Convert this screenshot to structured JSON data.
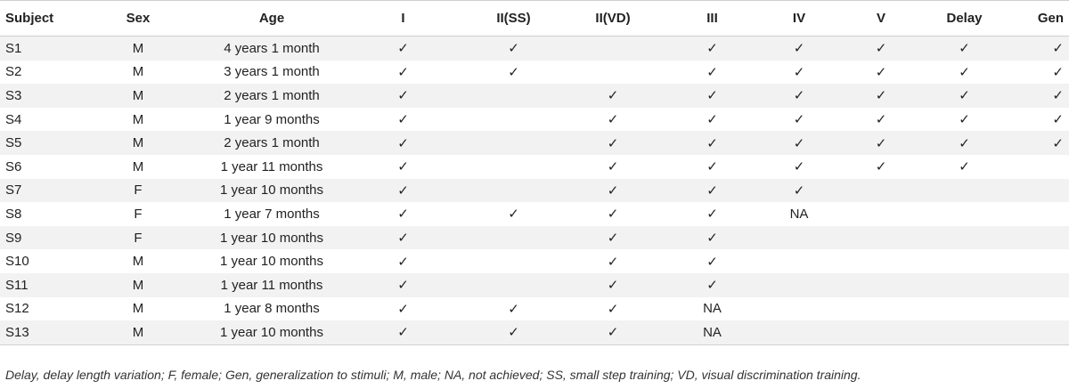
{
  "columns": [
    "Subject",
    "Sex",
    "Age",
    "I",
    "II(SS)",
    "II(VD)",
    "III",
    "IV",
    "V",
    "Delay",
    "Gen"
  ],
  "rows": [
    [
      "S1",
      "M",
      "4 years 1 month",
      "✓",
      "✓",
      "",
      "✓",
      "✓",
      "✓",
      "✓",
      "✓"
    ],
    [
      "S2",
      "M",
      "3 years 1 month",
      "✓",
      "✓",
      "",
      "✓",
      "✓",
      "✓",
      "✓",
      "✓"
    ],
    [
      "S3",
      "M",
      "2 years 1 month",
      "✓",
      "",
      "✓",
      "✓",
      "✓",
      "✓",
      "✓",
      "✓"
    ],
    [
      "S4",
      "M",
      "1 year 9 months",
      "✓",
      "",
      "✓",
      "✓",
      "✓",
      "✓",
      "✓",
      "✓"
    ],
    [
      "S5",
      "M",
      "2 years 1 month",
      "✓",
      "",
      "✓",
      "✓",
      "✓",
      "✓",
      "✓",
      "✓"
    ],
    [
      "S6",
      "M",
      "1 year 11 months",
      "✓",
      "",
      "✓",
      "✓",
      "✓",
      "✓",
      "✓",
      ""
    ],
    [
      "S7",
      "F",
      "1 year 10 months",
      "✓",
      "",
      "✓",
      "✓",
      "✓",
      "",
      "",
      ""
    ],
    [
      "S8",
      "F",
      "1 year 7 months",
      "✓",
      "✓",
      "✓",
      "✓",
      "NA",
      "",
      "",
      ""
    ],
    [
      "S9",
      "F",
      "1 year 10 months",
      "✓",
      "",
      "✓",
      "✓",
      "",
      "",
      "",
      ""
    ],
    [
      "S10",
      "M",
      "1 year 10 months",
      "✓",
      "",
      "✓",
      "✓",
      "",
      "",
      "",
      ""
    ],
    [
      "S11",
      "M",
      "1 year 11 months",
      "✓",
      "",
      "✓",
      "✓",
      "",
      "",
      "",
      ""
    ],
    [
      "S12",
      "M",
      "1 year 8 months",
      "✓",
      "✓",
      "✓",
      "NA",
      "",
      "",
      "",
      ""
    ],
    [
      "S13",
      "M",
      "1 year 10 months",
      "✓",
      "✓",
      "✓",
      "NA",
      "",
      "",
      "",
      ""
    ]
  ],
  "footnote": "Delay, delay length variation; F, female; Gen, generalization to stimuli; M, male; NA, not achieved; SS, small step training; VD, visual discrimination training."
}
